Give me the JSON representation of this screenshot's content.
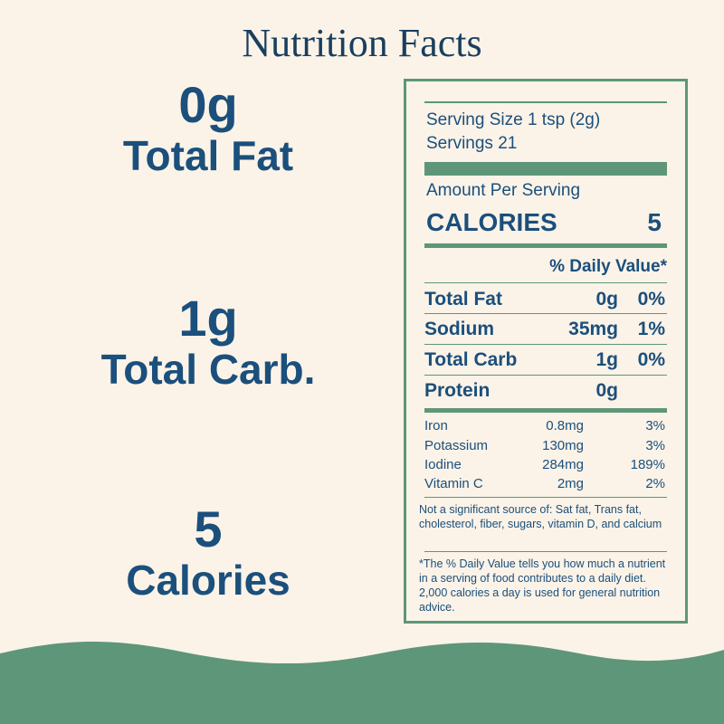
{
  "title": "Nutrition Facts",
  "highlights": [
    {
      "value": "0g",
      "label": "Total Fat"
    },
    {
      "value": "1g",
      "label": "Total Carb."
    },
    {
      "value": "5",
      "label": "Calories"
    }
  ],
  "panel": {
    "serving_size": "Serving Size 1 tsp (2g)",
    "servings": "Servings 21",
    "amount_per_serving": "Amount Per Serving",
    "calories_label": "CALORIES",
    "calories_value": "5",
    "daily_value_header": "% Daily Value*",
    "nutrients": [
      {
        "name": "Total Fat",
        "amount": "0g",
        "dv": "0%"
      },
      {
        "name": "Sodium",
        "amount": "35mg",
        "dv": "1%"
      },
      {
        "name": "Total Carb",
        "amount": "1g",
        "dv": "0%"
      },
      {
        "name": "Protein",
        "amount": "0g",
        "dv": ""
      }
    ],
    "minerals": [
      {
        "name": "Iron",
        "amount": "0.8mg",
        "dv": "3%"
      },
      {
        "name": "Potassium",
        "amount": "130mg",
        "dv": "3%"
      },
      {
        "name": "Iodine",
        "amount": "284mg",
        "dv": "189%"
      },
      {
        "name": "Vitamin C",
        "amount": "2mg",
        "dv": "2%"
      }
    ],
    "not_significant": "Not a significant source of: Sat fat, Trans fat, cholesterol, fiber, sugars, vitamin D, and calcium",
    "footnote": "*The % Daily Value tells you how much a nutrient in a serving of food contributes to a daily diet. 2,000 calories a day is used for general nutrition advice."
  },
  "colors": {
    "background": "#fbf3e8",
    "accent": "#5e9679",
    "text": "#1b4f7c"
  }
}
